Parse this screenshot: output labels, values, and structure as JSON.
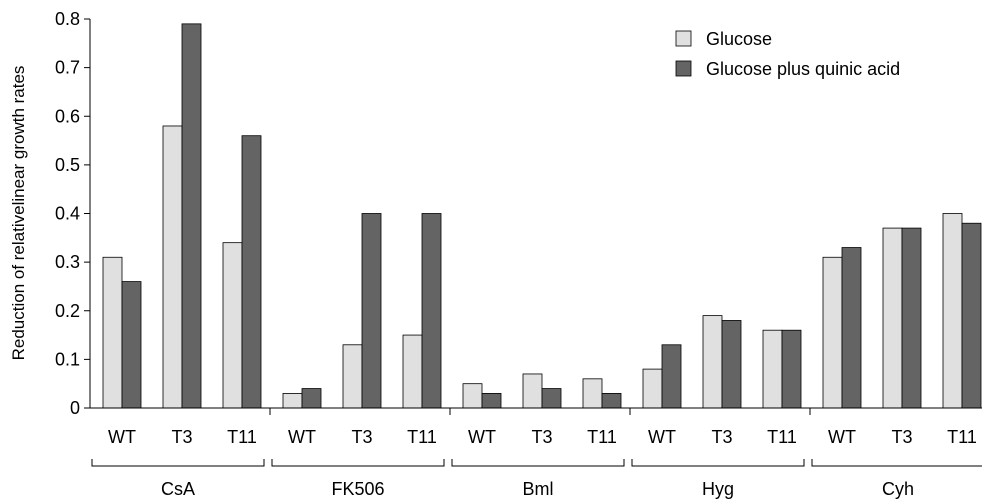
{
  "chart_data": {
    "type": "bar",
    "ylabel": "Reduction of relativelinear growth rates",
    "ylim": [
      0,
      0.8
    ],
    "yticks": [
      "0",
      "0.1",
      "0.2",
      "0.3",
      "0.4",
      "0.5",
      "0.6",
      "0.7",
      "0.8"
    ],
    "groups": [
      {
        "label": "CsA",
        "categories": [
          "WT",
          "T3",
          "T11"
        ]
      },
      {
        "label": "FK506",
        "categories": [
          "WT",
          "T3",
          "T11"
        ]
      },
      {
        "label": "Bml",
        "categories": [
          "WT",
          "T3",
          "T11"
        ]
      },
      {
        "label": "Hyg",
        "categories": [
          "WT",
          "T3",
          "T11"
        ]
      },
      {
        "label": "Cyh",
        "categories": [
          "WT",
          "T3",
          "T11"
        ]
      }
    ],
    "series": [
      {
        "name": "Glucose",
        "color": "#e0e0e0",
        "values": [
          0.31,
          0.58,
          0.34,
          0.03,
          0.13,
          0.15,
          0.05,
          0.07,
          0.06,
          0.08,
          0.19,
          0.16,
          0.31,
          0.37,
          0.4
        ]
      },
      {
        "name": "Glucose plus quinic acid",
        "color": "#646464",
        "values": [
          0.26,
          0.79,
          0.56,
          0.04,
          0.4,
          0.4,
          0.03,
          0.04,
          0.03,
          0.13,
          0.18,
          0.16,
          0.33,
          0.37,
          0.38
        ]
      }
    ],
    "legend_position": "top-right",
    "grid": false
  }
}
